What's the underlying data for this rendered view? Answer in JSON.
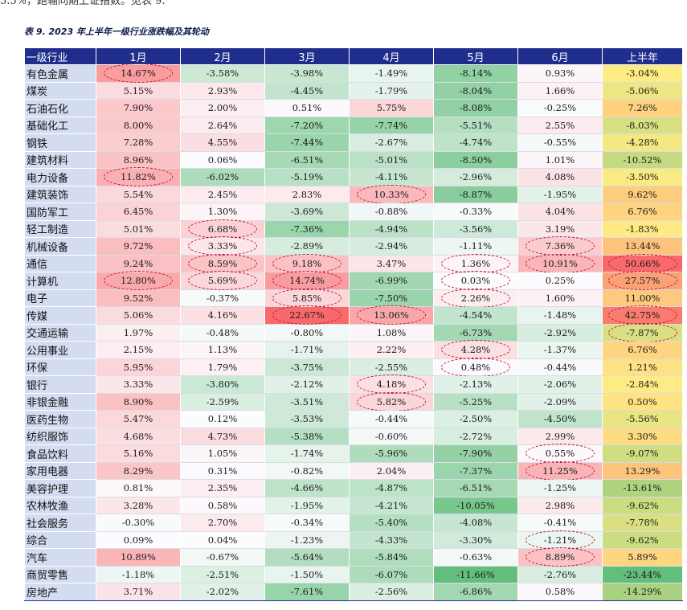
{
  "intro_text": "5.5%，跑输同期上证指数。见表 9.",
  "caption": "表 9. 2023 年上半年一级行业涨跌幅及其轮动",
  "headers": [
    "一级行业",
    "1月",
    "2月",
    "3月",
    "4月",
    "5月",
    "6月",
    "上半年"
  ],
  "rows": [
    {
      "name": "有色金属",
      "values": [
        "14.67%",
        "-3.58%",
        "-3.98%",
        "-1.49%",
        "-8.14%",
        "0.93%",
        "-3.04%"
      ],
      "n": [
        14.67,
        -3.58,
        -3.98,
        -1.49,
        -8.14,
        0.93,
        -3.04
      ],
      "circled": [
        true,
        false,
        false,
        false,
        false,
        false,
        false
      ]
    },
    {
      "name": "煤炭",
      "values": [
        "5.15%",
        "2.93%",
        "-4.45%",
        "-1.79%",
        "-8.04%",
        "1.66%",
        "-5.06%"
      ],
      "n": [
        5.15,
        2.93,
        -4.45,
        -1.79,
        -8.04,
        1.66,
        -5.06
      ],
      "circled": [
        false,
        false,
        false,
        false,
        false,
        false,
        false
      ]
    },
    {
      "name": "石油石化",
      "values": [
        "7.90%",
        "2.00%",
        "0.51%",
        "5.75%",
        "-8.08%",
        "-0.25%",
        "7.26%"
      ],
      "n": [
        7.9,
        2.0,
        0.51,
        5.75,
        -8.08,
        -0.25,
        7.26
      ],
      "circled": [
        false,
        false,
        false,
        false,
        false,
        false,
        false
      ]
    },
    {
      "name": "基础化工",
      "values": [
        "8.00%",
        "2.64%",
        "-7.20%",
        "-7.74%",
        "-5.51%",
        "2.55%",
        "-8.03%"
      ],
      "n": [
        8.0,
        2.64,
        -7.2,
        -7.74,
        -5.51,
        2.55,
        -8.03
      ],
      "circled": [
        false,
        false,
        false,
        false,
        false,
        false,
        false
      ]
    },
    {
      "name": "钢铁",
      "values": [
        "7.28%",
        "4.55%",
        "-7.44%",
        "-2.67%",
        "-4.74%",
        "-0.55%",
        "-4.28%"
      ],
      "n": [
        7.28,
        4.55,
        -7.44,
        -2.67,
        -4.74,
        -0.55,
        -4.28
      ],
      "circled": [
        false,
        false,
        false,
        false,
        false,
        false,
        false
      ]
    },
    {
      "name": "建筑材料",
      "values": [
        "8.96%",
        "0.06%",
        "-6.51%",
        "-5.01%",
        "-8.50%",
        "1.01%",
        "-10.52%"
      ],
      "n": [
        8.96,
        0.06,
        -6.51,
        -5.01,
        -8.5,
        1.01,
        -10.52
      ],
      "circled": [
        false,
        false,
        false,
        false,
        false,
        false,
        false
      ]
    },
    {
      "name": "电力设备",
      "values": [
        "11.82%",
        "-6.02%",
        "-5.19%",
        "-4.11%",
        "-2.96%",
        "4.08%",
        "-3.50%"
      ],
      "n": [
        11.82,
        -6.02,
        -5.19,
        -4.11,
        -2.96,
        4.08,
        -3.5
      ],
      "circled": [
        true,
        false,
        false,
        false,
        false,
        false,
        false
      ]
    },
    {
      "name": "建筑装饰",
      "values": [
        "5.54%",
        "2.45%",
        "2.83%",
        "10.33%",
        "-8.87%",
        "-1.95%",
        "9.62%"
      ],
      "n": [
        5.54,
        2.45,
        2.83,
        10.33,
        -8.87,
        -1.95,
        9.62
      ],
      "circled": [
        false,
        false,
        false,
        true,
        false,
        false,
        false
      ]
    },
    {
      "name": "国防军工",
      "values": [
        "6.45%",
        "1.30%",
        "-3.69%",
        "-0.88%",
        "-0.33%",
        "4.04%",
        "6.76%"
      ],
      "n": [
        6.45,
        1.3,
        -3.69,
        -0.88,
        -0.33,
        4.04,
        6.76
      ],
      "circled": [
        false,
        false,
        false,
        false,
        false,
        false,
        false
      ]
    },
    {
      "name": "轻工制造",
      "values": [
        "5.01%",
        "6.68%",
        "-7.36%",
        "-4.94%",
        "-3.56%",
        "3.19%",
        "-1.83%"
      ],
      "n": [
        5.01,
        6.68,
        -7.36,
        -4.94,
        -3.56,
        3.19,
        -1.83
      ],
      "circled": [
        false,
        true,
        false,
        false,
        false,
        false,
        false
      ]
    },
    {
      "name": "机械设备",
      "values": [
        "9.72%",
        "3.33%",
        "-2.89%",
        "-2.94%",
        "-1.11%",
        "7.36%",
        "13.44%"
      ],
      "n": [
        9.72,
        3.33,
        -2.89,
        -2.94,
        -1.11,
        7.36,
        13.44
      ],
      "circled": [
        false,
        true,
        false,
        false,
        false,
        true,
        false
      ]
    },
    {
      "name": "通信",
      "values": [
        "9.24%",
        "8.59%",
        "9.18%",
        "3.47%",
        "1.36%",
        "10.91%",
        "50.66%"
      ],
      "n": [
        9.24,
        8.59,
        9.18,
        3.47,
        1.36,
        10.91,
        50.66
      ],
      "circled": [
        false,
        true,
        true,
        false,
        true,
        true,
        true
      ]
    },
    {
      "name": "计算机",
      "values": [
        "12.80%",
        "5.69%",
        "14.74%",
        "-6.99%",
        "0.03%",
        "0.25%",
        "27.57%"
      ],
      "n": [
        12.8,
        5.69,
        14.74,
        -6.99,
        0.03,
        0.25,
        27.57
      ],
      "circled": [
        true,
        true,
        true,
        false,
        true,
        false,
        true
      ]
    },
    {
      "name": "电子",
      "values": [
        "9.52%",
        "-0.37%",
        "5.85%",
        "-7.50%",
        "2.26%",
        "1.60%",
        "11.00%"
      ],
      "n": [
        9.52,
        -0.37,
        5.85,
        -7.5,
        2.26,
        1.6,
        11.0
      ],
      "circled": [
        false,
        false,
        true,
        false,
        true,
        false,
        false
      ]
    },
    {
      "name": "传媒",
      "values": [
        "5.06%",
        "4.16%",
        "22.67%",
        "13.06%",
        "-4.54%",
        "-1.48%",
        "42.75%"
      ],
      "n": [
        5.06,
        4.16,
        22.67,
        13.06,
        -4.54,
        -1.48,
        42.75
      ],
      "circled": [
        false,
        false,
        true,
        true,
        false,
        false,
        true
      ]
    },
    {
      "name": "交通运输",
      "values": [
        "1.97%",
        "-0.48%",
        "-0.80%",
        "1.08%",
        "-6.73%",
        "-2.92%",
        "-7.87%"
      ],
      "n": [
        1.97,
        -0.48,
        -0.8,
        1.08,
        -6.73,
        -2.92,
        -7.87
      ],
      "circled": [
        false,
        false,
        false,
        false,
        false,
        false,
        true
      ]
    },
    {
      "name": "公用事业",
      "values": [
        "2.15%",
        "1.13%",
        "-1.71%",
        "2.22%",
        "4.28%",
        "-1.37%",
        "6.76%"
      ],
      "n": [
        2.15,
        1.13,
        -1.71,
        2.22,
        4.28,
        -1.37,
        6.76
      ],
      "circled": [
        false,
        false,
        false,
        false,
        true,
        false,
        false
      ]
    },
    {
      "name": "环保",
      "values": [
        "5.95%",
        "1.79%",
        "-3.75%",
        "-2.55%",
        "0.48%",
        "-0.44%",
        "1.21%"
      ],
      "n": [
        5.95,
        1.79,
        -3.75,
        -2.55,
        0.48,
        -0.44,
        1.21
      ],
      "circled": [
        false,
        false,
        false,
        false,
        true,
        false,
        false
      ]
    },
    {
      "name": "银行",
      "values": [
        "3.33%",
        "-3.80%",
        "-2.12%",
        "4.18%",
        "-2.13%",
        "-2.06%",
        "-2.84%"
      ],
      "n": [
        3.33,
        -3.8,
        -2.12,
        4.18,
        -2.13,
        -2.06,
        -2.84
      ],
      "circled": [
        false,
        false,
        false,
        true,
        false,
        false,
        false
      ]
    },
    {
      "name": "非银金融",
      "values": [
        "8.90%",
        "-2.59%",
        "-3.51%",
        "5.82%",
        "-5.25%",
        "-2.09%",
        "0.50%"
      ],
      "n": [
        8.9,
        -2.59,
        -3.51,
        5.82,
        -5.25,
        -2.09,
        0.5
      ],
      "circled": [
        false,
        false,
        false,
        true,
        false,
        false,
        false
      ]
    },
    {
      "name": "医药生物",
      "values": [
        "5.47%",
        "0.12%",
        "-3.53%",
        "-0.44%",
        "-2.50%",
        "-4.50%",
        "-5.56%"
      ],
      "n": [
        5.47,
        0.12,
        -3.53,
        -0.44,
        -2.5,
        -4.5,
        -5.56
      ],
      "circled": [
        false,
        false,
        false,
        false,
        false,
        false,
        false
      ]
    },
    {
      "name": "纺织服饰",
      "values": [
        "4.68%",
        "4.73%",
        "-5.38%",
        "-0.60%",
        "-2.72%",
        "2.99%",
        "3.30%"
      ],
      "n": [
        4.68,
        4.73,
        -5.38,
        -0.6,
        -2.72,
        2.99,
        3.3
      ],
      "circled": [
        false,
        false,
        false,
        false,
        false,
        false,
        false
      ]
    },
    {
      "name": "食品饮料",
      "values": [
        "5.16%",
        "1.05%",
        "-1.74%",
        "-5.96%",
        "-7.90%",
        "0.55%",
        "-9.07%"
      ],
      "n": [
        5.16,
        1.05,
        -1.74,
        -5.96,
        -7.9,
        0.55,
        -9.07
      ],
      "circled": [
        false,
        false,
        false,
        false,
        false,
        true,
        false
      ]
    },
    {
      "name": "家用电器",
      "values": [
        "8.29%",
        "0.31%",
        "-0.82%",
        "2.04%",
        "-7.37%",
        "11.25%",
        "13.29%"
      ],
      "n": [
        8.29,
        0.31,
        -0.82,
        2.04,
        -7.37,
        11.25,
        13.29
      ],
      "circled": [
        false,
        false,
        false,
        false,
        false,
        true,
        false
      ]
    },
    {
      "name": "美容护理",
      "values": [
        "0.81%",
        "2.35%",
        "-4.66%",
        "-4.87%",
        "-6.51%",
        "-1.25%",
        "-13.61%"
      ],
      "n": [
        0.81,
        2.35,
        -4.66,
        -4.87,
        -6.51,
        -1.25,
        -13.61
      ],
      "circled": [
        false,
        false,
        false,
        false,
        false,
        false,
        false
      ]
    },
    {
      "name": "农林牧渔",
      "values": [
        "3.28%",
        "0.58%",
        "-1.95%",
        "-4.21%",
        "-10.05%",
        "2.98%",
        "-9.62%"
      ],
      "n": [
        3.28,
        0.58,
        -1.95,
        -4.21,
        -10.05,
        2.98,
        -9.62
      ],
      "circled": [
        false,
        false,
        false,
        false,
        false,
        false,
        false
      ]
    },
    {
      "name": "社会服务",
      "values": [
        "-0.30%",
        "2.70%",
        "-0.34%",
        "-5.40%",
        "-4.08%",
        "-0.41%",
        "-7.78%"
      ],
      "n": [
        -0.3,
        2.7,
        -0.34,
        -5.4,
        -4.08,
        -0.41,
        -7.78
      ],
      "circled": [
        false,
        false,
        false,
        false,
        false,
        false,
        false
      ]
    },
    {
      "name": "综合",
      "values": [
        "0.09%",
        "0.04%",
        "-1.23%",
        "-4.33%",
        "-3.30%",
        "-1.21%",
        "-9.62%"
      ],
      "n": [
        0.09,
        0.04,
        -1.23,
        -4.33,
        -3.3,
        -1.21,
        -9.62
      ],
      "circled": [
        false,
        false,
        false,
        false,
        false,
        true,
        false
      ]
    },
    {
      "name": "汽车",
      "values": [
        "10.89%",
        "-0.67%",
        "-5.64%",
        "-5.84%",
        "-0.63%",
        "8.89%",
        "5.89%"
      ],
      "n": [
        10.89,
        -0.67,
        -5.64,
        -5.84,
        -0.63,
        8.89,
        5.89
      ],
      "circled": [
        false,
        false,
        false,
        false,
        false,
        true,
        false
      ]
    },
    {
      "name": "商贸零售",
      "values": [
        "-1.18%",
        "-2.51%",
        "-1.50%",
        "-6.07%",
        "-11.66%",
        "-2.76%",
        "-23.44%"
      ],
      "n": [
        -1.18,
        -2.51,
        -1.5,
        -6.07,
        -11.66,
        -2.76,
        -23.44
      ],
      "circled": [
        false,
        false,
        false,
        false,
        false,
        false,
        false
      ]
    },
    {
      "name": "房地产",
      "values": [
        "3.71%",
        "-2.02%",
        "-7.61%",
        "-2.56%",
        "-6.86%",
        "0.58%",
        "-14.29%"
      ],
      "n": [
        3.71,
        -2.02,
        -7.61,
        -2.56,
        -6.86,
        0.58,
        -14.29
      ],
      "circled": [
        false,
        false,
        false,
        false,
        false,
        false,
        false
      ]
    }
  ],
  "colors": {
    "header_bg": "#1f2e8c",
    "industry_bg": "#d3dcf1",
    "positive": "#f8696b",
    "negative": "#63be7b",
    "neutral": "#fcfcff",
    "half_high": "#f8696b",
    "half_mid": "#ffeb84",
    "half_low": "#63be7b",
    "oval": "#c8102e"
  }
}
